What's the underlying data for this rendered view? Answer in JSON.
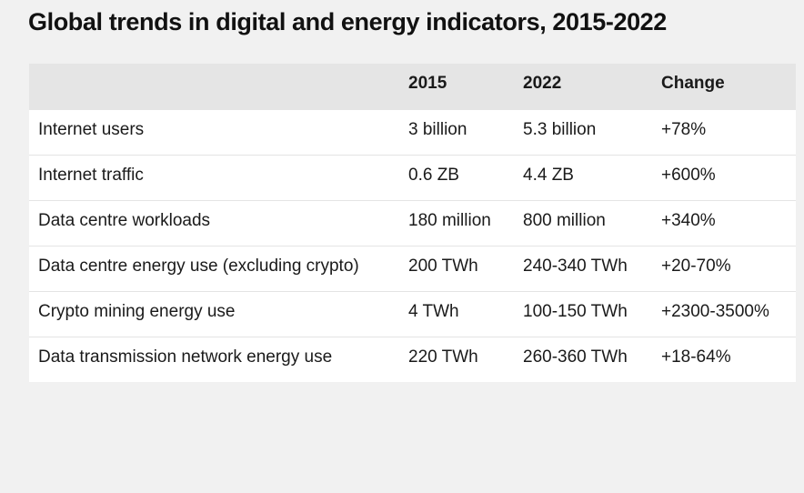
{
  "title": "Global trends in digital and energy indicators, 2015-2022",
  "table": {
    "headers": [
      "",
      "2015",
      "2022",
      "Change"
    ],
    "rows": [
      [
        "Internet users",
        "3 billion",
        "5.3 billion",
        "+78%"
      ],
      [
        "Internet traffic",
        "0.6 ZB",
        "4.4 ZB",
        "+600%"
      ],
      [
        "Data centre workloads",
        "180 million",
        "800 million",
        "+340%"
      ],
      [
        "Data centre energy use (excluding crypto)",
        "200 TWh",
        "240-340 TWh",
        "+20-70%"
      ],
      [
        "Crypto mining energy use",
        "4 TWh",
        "100-150 TWh",
        "+2300-3500%"
      ],
      [
        "Data transmission network energy use",
        "220 TWh",
        "260-360 TWh",
        "+18-64%"
      ]
    ]
  },
  "colors": {
    "page_background": "#f1f1f1",
    "header_background": "#e5e5e5",
    "table_background": "#ffffff",
    "text": "#1a1a1a"
  }
}
